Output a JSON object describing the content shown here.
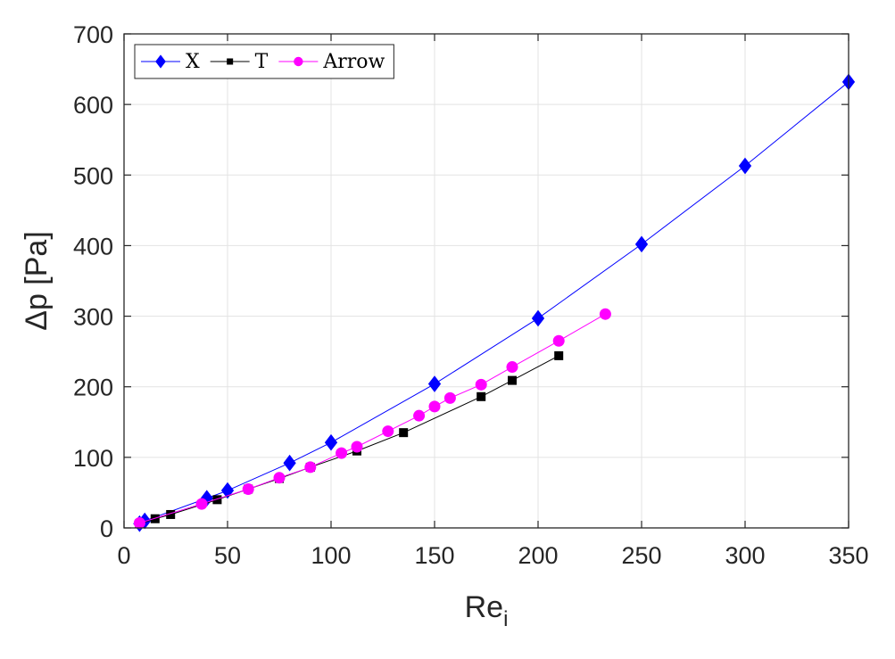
{
  "chart_data": {
    "type": "line",
    "xlabel": "Re",
    "xlabel_sub": "i",
    "ylabel": "Δp [Pa]",
    "xlim": [
      0,
      350
    ],
    "ylim": [
      0,
      700
    ],
    "xticks": [
      0,
      50,
      100,
      150,
      200,
      250,
      300,
      350
    ],
    "yticks": [
      0,
      100,
      200,
      300,
      400,
      500,
      600,
      700
    ],
    "grid": true,
    "legend": {
      "placement": "top-left",
      "orientation": "horizontal"
    },
    "series": [
      {
        "name": "X",
        "color": "#0000ff",
        "marker": "diamond",
        "x": [
          7.5,
          10,
          40,
          50,
          80,
          100,
          150,
          200,
          250,
          300,
          350
        ],
        "y": [
          6,
          10,
          42,
          53,
          92,
          121,
          204,
          297,
          402,
          513,
          632
        ]
      },
      {
        "name": "T",
        "color": "#000000",
        "marker": "square",
        "x": [
          7.5,
          15,
          22.5,
          45,
          60,
          75,
          90,
          112.5,
          135,
          172.5,
          187.5,
          210
        ],
        "y": [
          6,
          13,
          19,
          40,
          55,
          70,
          86,
          109,
          135,
          186,
          209,
          244
        ]
      },
      {
        "name": "Arrow",
        "color": "#ff00ff",
        "marker": "circle",
        "x": [
          7.5,
          37.5,
          60,
          75,
          90,
          105,
          112.5,
          127.5,
          142.5,
          150,
          157.5,
          172.5,
          187.5,
          210,
          232.5
        ],
        "y": [
          7,
          34,
          55,
          71,
          86,
          106,
          115,
          137,
          159,
          172,
          184,
          203,
          228,
          265,
          303
        ]
      }
    ]
  }
}
